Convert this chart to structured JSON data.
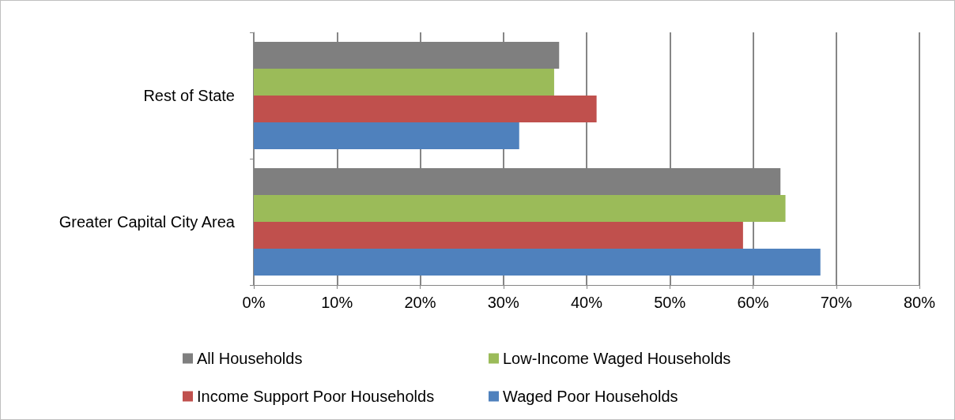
{
  "chart_data": {
    "type": "bar",
    "orientation": "horizontal",
    "categories": [
      "Rest of State",
      "Greater Capital City Area"
    ],
    "series": [
      {
        "name": "All Households",
        "color": "#7f7f7f",
        "values": [
          36.7,
          63.3
        ]
      },
      {
        "name": "Low-Income Waged Households",
        "color": "#9bbb59",
        "values": [
          36.1,
          63.9
        ]
      },
      {
        "name": "Income Support Poor Households",
        "color": "#c0504d",
        "values": [
          41.2,
          58.8
        ]
      },
      {
        "name": "Waged Poor Households",
        "color": "#4f81bd",
        "values": [
          31.9,
          68.1
        ]
      }
    ],
    "xlim": [
      0,
      80
    ],
    "xticks": [
      {
        "value": 0,
        "label": "0%"
      },
      {
        "value": 10,
        "label": "10%"
      },
      {
        "value": 20,
        "label": "20%"
      },
      {
        "value": 30,
        "label": "30%"
      },
      {
        "value": 40,
        "label": "40%"
      },
      {
        "value": 50,
        "label": "50%"
      },
      {
        "value": 60,
        "label": "60%"
      },
      {
        "value": 70,
        "label": "70%"
      },
      {
        "value": 80,
        "label": "80%"
      }
    ],
    "grid": "x",
    "legend": "bottom"
  }
}
